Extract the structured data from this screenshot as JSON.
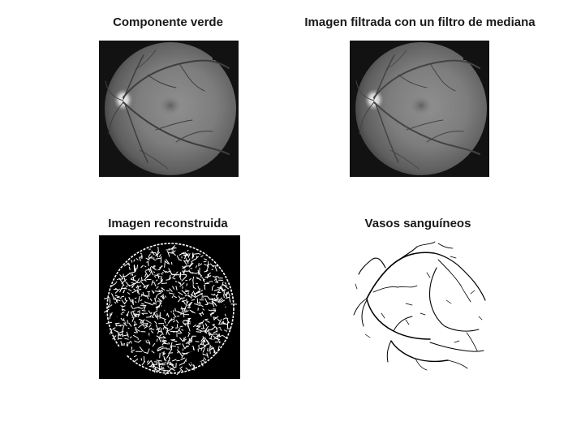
{
  "panels": [
    {
      "id": "green",
      "title": "Componente verde",
      "background": "#121212",
      "image": "fundus-green-channel"
    },
    {
      "id": "median",
      "title": "Imagen filtrada con un filtro de mediana",
      "background": "#121212",
      "image": "fundus-median-filtered"
    },
    {
      "id": "reconstructed",
      "title": "Imagen reconstruida",
      "background": "#000000",
      "image": "binary-reconstruction"
    },
    {
      "id": "vessels",
      "title": "Vasos sanguíneos",
      "background": "#ffffff",
      "image": "vessel-skeleton"
    }
  ]
}
